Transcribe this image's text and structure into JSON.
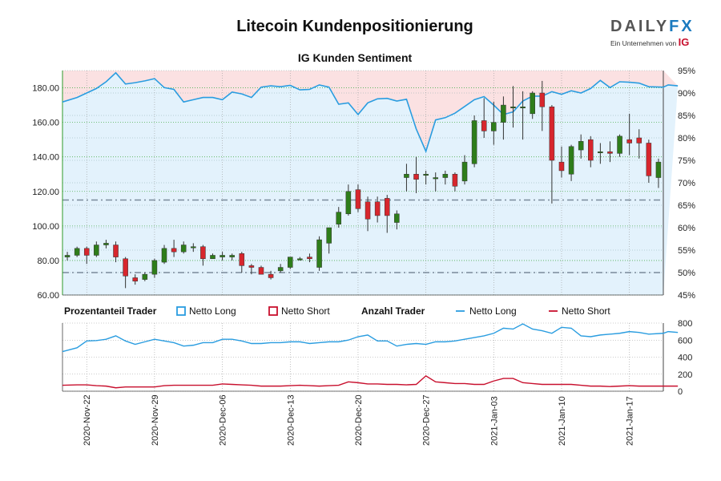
{
  "title": "Litecoin Kundenpositionierung",
  "subtitle": "IG Kunden Sentiment",
  "logo": {
    "brand_main": "DAILY",
    "brand_accent": "FX",
    "tagline": "Ein Unternehmen von",
    "tag_brand": "IG"
  },
  "colors": {
    "long": "#2a9de0",
    "short": "#c8102e",
    "up_candle": "#2e7d1a",
    "down_candle": "#d7262d",
    "long_fill": "#e3f2fc",
    "short_fill": "#fbe1e2",
    "axis_green": "#2e9a28"
  },
  "legend": {
    "pct_title": "Prozentanteil Trader",
    "pct_long": "Netto Long",
    "pct_short": "Netto Short",
    "count_title": "Anzahl Trader",
    "count_long": "Netto Long",
    "count_short": "Netto Short"
  },
  "chart_data": [
    {
      "type": "candlestick",
      "title": "IG Kunden Sentiment",
      "ylim": [
        60,
        190
      ],
      "y_ticks": [
        "60.00",
        "80.00",
        "100.00",
        "120.00",
        "140.00",
        "160.00",
        "180.00"
      ],
      "y_tick_values": [
        60,
        80,
        100,
        120,
        140,
        160,
        180
      ],
      "right_ylim": [
        45,
        95
      ],
      "right_ticks": [
        "45%",
        "50%",
        "55%",
        "60%",
        "65%",
        "70%",
        "75%",
        "80%",
        "85%",
        "90%",
        "95%"
      ],
      "right_tick_values": [
        45,
        50,
        55,
        60,
        65,
        70,
        75,
        80,
        85,
        90,
        95
      ],
      "x_ticks": [
        "2020-Nov-22",
        "2020-Nov-29",
        "2020-Dec-06",
        "2020-Dec-13",
        "2020-Dec-20",
        "2020-Dec-27",
        "2021-Jan-03",
        "2021-Jan-10",
        "2021-Jan-17"
      ],
      "x_tick_index": [
        2,
        9,
        16,
        23,
        30,
        37,
        44,
        51,
        58
      ],
      "reference_lines": [
        115,
        73
      ],
      "candles": [
        [
          82,
          85,
          80,
          83
        ],
        [
          83,
          88,
          82,
          87
        ],
        [
          87,
          88,
          78,
          83
        ],
        [
          83,
          91,
          82,
          89
        ],
        [
          89,
          92,
          87,
          90
        ],
        [
          89,
          91,
          79,
          82
        ],
        [
          81,
          82,
          64,
          71
        ],
        [
          70,
          72,
          66,
          68
        ],
        [
          69,
          73,
          68,
          72
        ],
        [
          72,
          81,
          70,
          80
        ],
        [
          79,
          89,
          78,
          87
        ],
        [
          87,
          92,
          82,
          85
        ],
        [
          85,
          91,
          84,
          89
        ],
        [
          88,
          90,
          85,
          88
        ],
        [
          88,
          89,
          77,
          81
        ],
        [
          81,
          84,
          81,
          83
        ],
        [
          82,
          85,
          80,
          83
        ],
        [
          82,
          84,
          80,
          83
        ],
        [
          84,
          85,
          73,
          77
        ],
        [
          77,
          78,
          72,
          76
        ],
        [
          76,
          77,
          72,
          72
        ],
        [
          72,
          74,
          69,
          70
        ],
        [
          74,
          78,
          73,
          76
        ],
        [
          76,
          82,
          75,
          82
        ],
        [
          81,
          82,
          80,
          81
        ],
        [
          82,
          84,
          79,
          81
        ],
        [
          76,
          94,
          74,
          92
        ],
        [
          90,
          98,
          84,
          99
        ],
        [
          101,
          111,
          99,
          108
        ],
        [
          107,
          124,
          106,
          120
        ],
        [
          121,
          124,
          108,
          110
        ],
        [
          114,
          117,
          97,
          104
        ],
        [
          114,
          117,
          102,
          106
        ],
        [
          116,
          118,
          96,
          106
        ],
        [
          102,
          109,
          98,
          107
        ],
        [
          128,
          136,
          120,
          130
        ],
        [
          130,
          140,
          119,
          127
        ],
        [
          130,
          132,
          124,
          130
        ],
        [
          128,
          131,
          120,
          128
        ],
        [
          128,
          132,
          124,
          130
        ],
        [
          130,
          131,
          120,
          123
        ],
        [
          126,
          141,
          124,
          137
        ],
        [
          136,
          164,
          134,
          161
        ],
        [
          161,
          174,
          151,
          155
        ],
        [
          155,
          172,
          147,
          160
        ],
        [
          160,
          175,
          150,
          170
        ],
        [
          169,
          181,
          157,
          169
        ],
        [
          169,
          178,
          150,
          169
        ],
        [
          165,
          178,
          162,
          177
        ],
        [
          177,
          184,
          155,
          169
        ],
        [
          169,
          170,
          113,
          138
        ],
        [
          137,
          146,
          128,
          132
        ],
        [
          130,
          147,
          126,
          146
        ],
        [
          144,
          153,
          139,
          149
        ],
        [
          150,
          152,
          134,
          138
        ],
        [
          143,
          148,
          136,
          143
        ],
        [
          143,
          149,
          137,
          142
        ],
        [
          142,
          153,
          140,
          152
        ],
        [
          150,
          165,
          141,
          148
        ],
        [
          151,
          156,
          139,
          148
        ],
        [
          148,
          150,
          125,
          129
        ],
        [
          128,
          139,
          122,
          137
        ]
      ],
      "sentiment_long_pct": [
        88.0,
        89.0,
        90.0,
        91.0,
        92.5,
        94.5,
        92.0,
        92.3,
        92.7,
        93.2,
        91.2,
        90.8,
        88.0,
        88.5,
        89.0,
        89.0,
        88.5,
        90.2,
        89.8,
        89.0,
        91.3,
        91.6,
        91.4,
        91.7,
        90.7,
        90.8,
        91.8,
        91.3,
        87.5,
        87.8,
        85.2,
        87.8,
        88.7,
        88.8,
        88.2,
        88.6,
        82.0,
        77.0,
        84.0,
        84.5,
        85.5,
        87.0,
        88.5,
        89.2,
        87.3,
        85.2,
        85.8,
        88.2,
        89.3,
        89.3,
        90.3,
        89.7,
        90.5,
        90.0,
        91.0,
        92.8,
        91.2,
        92.5,
        92.4,
        92.2,
        91.4,
        91.3,
        91.8,
        91.6
      ],
      "sentiment_short_pct": [
        12.0,
        11.0,
        10.0,
        9.0,
        7.5,
        5.5,
        8.0,
        7.7,
        7.3,
        6.8,
        8.8,
        9.2,
        12.0,
        11.5,
        11.0,
        11.0,
        11.5,
        9.8,
        10.2,
        11.0,
        8.7,
        8.4,
        8.6,
        8.3,
        9.3,
        9.2,
        8.2,
        8.7,
        12.5,
        12.2,
        14.8,
        12.2,
        11.3,
        11.2,
        11.8,
        11.4,
        18.0,
        23.0,
        16.0,
        15.5,
        14.5,
        13.0,
        11.5,
        10.8,
        12.7,
        14.8,
        14.2,
        11.8,
        10.7,
        10.7,
        9.7,
        10.3,
        9.5,
        10.0,
        9.0,
        7.2,
        8.8,
        7.5,
        7.6,
        7.8,
        8.6,
        8.7,
        8.2,
        8.4
      ]
    },
    {
      "type": "line",
      "title": "Anzahl Trader",
      "ylim": [
        0,
        800
      ],
      "y_ticks": [
        "0",
        "200",
        "400",
        "600",
        "800"
      ],
      "y_tick_values": [
        0,
        200,
        400,
        600,
        800
      ],
      "series": [
        {
          "name": "Netto Long",
          "values": [
            465,
            510,
            590,
            595,
            610,
            650,
            590,
            550,
            580,
            610,
            590,
            570,
            530,
            540,
            570,
            570,
            610,
            610,
            590,
            560,
            560,
            570,
            570,
            580,
            580,
            560,
            570,
            580,
            580,
            600,
            640,
            660,
            590,
            590,
            530,
            550,
            560,
            550,
            580,
            580,
            590,
            610,
            630,
            650,
            680,
            740,
            730,
            790,
            730,
            710,
            680,
            750,
            740,
            650,
            640,
            660,
            670,
            680,
            700,
            690,
            670,
            680,
            700,
            690
          ]
        },
        {
          "name": "Netto Short",
          "values": [
            70,
            75,
            75,
            65,
            60,
            40,
            50,
            50,
            50,
            50,
            65,
            70,
            70,
            70,
            70,
            70,
            85,
            80,
            75,
            70,
            60,
            60,
            60,
            65,
            70,
            65,
            60,
            65,
            70,
            110,
            100,
            85,
            85,
            80,
            80,
            75,
            80,
            180,
            110,
            100,
            90,
            90,
            80,
            80,
            120,
            150,
            150,
            100,
            90,
            80,
            80,
            80,
            80,
            70,
            60,
            60,
            55,
            60,
            65,
            60,
            60,
            60,
            60,
            60
          ]
        }
      ]
    }
  ]
}
